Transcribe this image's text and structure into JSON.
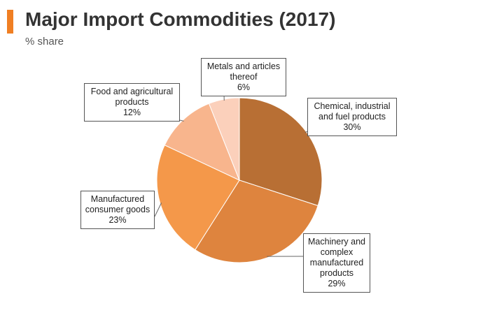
{
  "header": {
    "title": "Major Import Commodities (2017)",
    "subtitle": "% share",
    "accent_color": "#f07f23"
  },
  "chart_data": {
    "type": "pie",
    "title": "Major Import Commodities (2017)",
    "subtitle": "% share",
    "unit": "%",
    "slices": [
      {
        "label_lines": [
          "Chemical, industrial",
          "and fuel products"
        ],
        "value_label": "30%",
        "value": 30,
        "color": "#b86f34"
      },
      {
        "label_lines": [
          "Machinery and",
          "complex",
          "manufactured",
          "products"
        ],
        "value_label": "29%",
        "value": 29,
        "color": "#de843e"
      },
      {
        "label_lines": [
          "Manufactured",
          "consumer goods"
        ],
        "value_label": "23%",
        "value": 23,
        "color": "#f4984a"
      },
      {
        "label_lines": [
          "Food and agricultural",
          "products"
        ],
        "value_label": "12%",
        "value": 12,
        "color": "#f8b58d"
      },
      {
        "label_lines": [
          "Metals and articles",
          "thereof"
        ],
        "value_label": "6%",
        "value": 6,
        "color": "#fbd0bb"
      }
    ],
    "start_angle": "12 o'clock",
    "direction": "clockwise",
    "legend": "none"
  }
}
